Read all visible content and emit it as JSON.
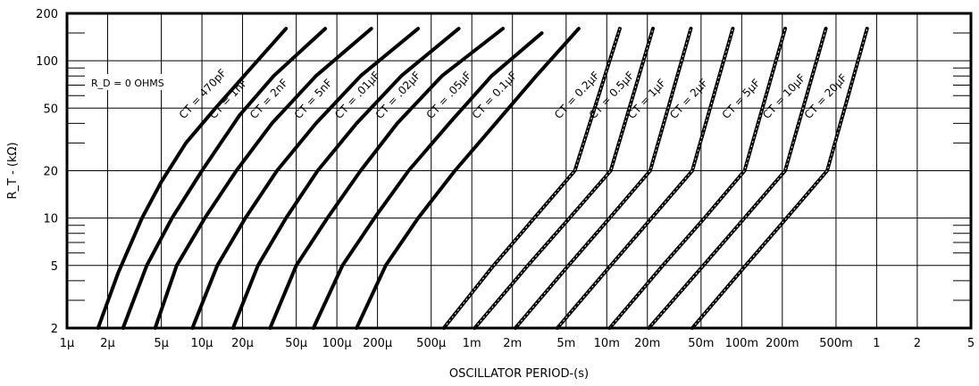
{
  "chart_data": {
    "type": "line",
    "title": "",
    "xlabel": "OSCILLATOR PERIOD-(s)",
    "ylabel": "R_T - (kΩ)",
    "x_scale": "log",
    "y_scale": "log",
    "xlim": [
      1e-06,
      5
    ],
    "ylim": [
      2,
      200
    ],
    "grid": true,
    "annotation": "R_D = 0 OHMS",
    "x_ticks": [
      {
        "v": 1e-06,
        "label": "1µ"
      },
      {
        "v": 2e-06,
        "label": "2µ"
      },
      {
        "v": 5e-06,
        "label": "5µ"
      },
      {
        "v": 1e-05,
        "label": "10µ"
      },
      {
        "v": 2e-05,
        "label": "20µ"
      },
      {
        "v": 5e-05,
        "label": "50µ"
      },
      {
        "v": 0.0001,
        "label": "100µ"
      },
      {
        "v": 0.0002,
        "label": "200µ"
      },
      {
        "v": 0.0005,
        "label": "500µ"
      },
      {
        "v": 0.001,
        "label": "1m"
      },
      {
        "v": 0.002,
        "label": "2m"
      },
      {
        "v": 0.005,
        "label": "5m"
      },
      {
        "v": 0.01,
        "label": "10m"
      },
      {
        "v": 0.02,
        "label": "20m"
      },
      {
        "v": 0.05,
        "label": "50m"
      },
      {
        "v": 0.1,
        "label": "100m"
      },
      {
        "v": 0.2,
        "label": "200m"
      },
      {
        "v": 0.5,
        "label": "500m"
      },
      {
        "v": 1,
        "label": "1"
      },
      {
        "v": 2,
        "label": "2"
      },
      {
        "v": 5,
        "label": "5"
      }
    ],
    "y_ticks": [
      {
        "v": 2,
        "label": "2"
      },
      {
        "v": 5,
        "label": "5"
      },
      {
        "v": 10,
        "label": "10"
      },
      {
        "v": 20,
        "label": "20"
      },
      {
        "v": 50,
        "label": "50"
      },
      {
        "v": 100,
        "label": "100"
      },
      {
        "v": 200,
        "label": "200"
      }
    ],
    "series": [
      {
        "name": "CT = 470pF",
        "points": [
          [
            1.7e-06,
            2
          ],
          [
            2.4e-06,
            4.5
          ],
          [
            3.6e-06,
            10
          ],
          [
            5e-06,
            17
          ],
          [
            7.6e-06,
            30
          ],
          [
            1.26e-05,
            50
          ],
          [
            4.2e-05,
            160
          ]
        ]
      },
      {
        "name": "CT = 1nF",
        "points": [
          [
            2.6e-06,
            2
          ],
          [
            3.9e-06,
            5
          ],
          [
            6e-06,
            10
          ],
          [
            1e-05,
            20
          ],
          [
            1.9e-05,
            45
          ],
          [
            3.4e-05,
            80
          ],
          [
            8.2e-05,
            160
          ]
        ]
      },
      {
        "name": "CT = 2nF",
        "points": [
          [
            4.5e-06,
            2
          ],
          [
            6.5e-06,
            5
          ],
          [
            1.05e-05,
            10
          ],
          [
            1.8e-05,
            20
          ],
          [
            3.3e-05,
            40
          ],
          [
            7e-05,
            80
          ],
          [
            0.00018,
            160
          ]
        ]
      },
      {
        "name": "CT = 5nF",
        "points": [
          [
            8.5e-06,
            2
          ],
          [
            1.3e-05,
            5
          ],
          [
            2.1e-05,
            10
          ],
          [
            3.6e-05,
            20
          ],
          [
            7e-05,
            40
          ],
          [
            0.00015,
            80
          ],
          [
            0.0004,
            160
          ]
        ]
      },
      {
        "name": "CT = .01µF",
        "points": [
          [
            1.7e-05,
            2
          ],
          [
            2.6e-05,
            5
          ],
          [
            4.2e-05,
            10
          ],
          [
            7.2e-05,
            20
          ],
          [
            0.00014,
            40
          ],
          [
            0.0003,
            80
          ],
          [
            0.0008,
            160
          ]
        ]
      },
      {
        "name": "CT = .02µF",
        "points": [
          [
            3.2e-05,
            2
          ],
          [
            5e-05,
            5
          ],
          [
            8.5e-05,
            10
          ],
          [
            0.00015,
            20
          ],
          [
            0.00028,
            40
          ],
          [
            0.0006,
            80
          ],
          [
            0.0017,
            160
          ]
        ]
      },
      {
        "name": "CT = .05µF",
        "points": [
          [
            6.7e-05,
            2
          ],
          [
            0.00011,
            5
          ],
          [
            0.00019,
            10
          ],
          [
            0.00034,
            20
          ],
          [
            0.00068,
            40
          ],
          [
            0.0014,
            80
          ],
          [
            0.0033,
            150
          ]
        ]
      },
      {
        "name": "CT = 0.1µF",
        "points": [
          [
            0.00014,
            2
          ],
          [
            0.00023,
            5
          ],
          [
            0.0004,
            10
          ],
          [
            0.00075,
            20
          ],
          [
            0.0015,
            40
          ],
          [
            0.003,
            80
          ],
          [
            0.0062,
            160
          ]
        ]
      },
      {
        "name": "CT = 0.2µF",
        "points": [
          [
            0.00062,
            2
          ],
          [
            0.00145,
            5
          ],
          [
            0.0029,
            10
          ],
          [
            0.0058,
            20
          ],
          [
            0.0125,
            160
          ]
        ]
      },
      {
        "name": "CT = 0.5µF",
        "points": [
          [
            0.00105,
            2
          ],
          [
            0.0026,
            5
          ],
          [
            0.0053,
            10
          ],
          [
            0.0107,
            20
          ],
          [
            0.022,
            160
          ]
        ]
      },
      {
        "name": "CT = 1µF",
        "points": [
          [
            0.0021,
            2
          ],
          [
            0.0052,
            5
          ],
          [
            0.0105,
            10
          ],
          [
            0.021,
            20
          ],
          [
            0.042,
            160
          ]
        ]
      },
      {
        "name": "CT = 2µF",
        "points": [
          [
            0.0043,
            2
          ],
          [
            0.0107,
            5
          ],
          [
            0.0215,
            10
          ],
          [
            0.043,
            20
          ],
          [
            0.086,
            160
          ]
        ]
      },
      {
        "name": "CT = 5µF",
        "points": [
          [
            0.0105,
            2
          ],
          [
            0.026,
            5
          ],
          [
            0.053,
            10
          ],
          [
            0.105,
            20
          ],
          [
            0.21,
            160
          ]
        ]
      },
      {
        "name": "CT = 10µF",
        "points": [
          [
            0.0205,
            2
          ],
          [
            0.052,
            5
          ],
          [
            0.105,
            10
          ],
          [
            0.21,
            20
          ],
          [
            0.42,
            160
          ]
        ]
      },
      {
        "name": "CT = 20µF",
        "points": [
          [
            0.043,
            2
          ],
          [
            0.107,
            5
          ],
          [
            0.215,
            10
          ],
          [
            0.43,
            20
          ],
          [
            0.85,
            160
          ]
        ]
      }
    ]
  }
}
